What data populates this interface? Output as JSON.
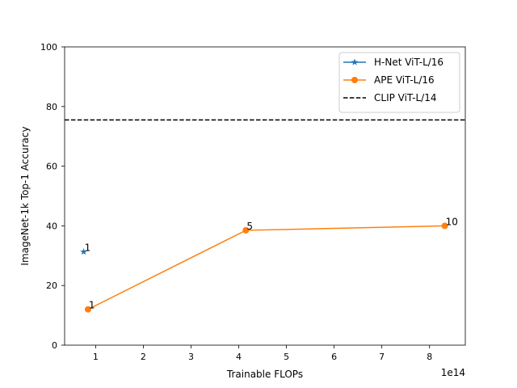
{
  "chart_data": {
    "type": "line",
    "xlabel": "Trainable FLOPs",
    "ylabel": "ImageNet-1k Top-1 Accuracy",
    "x_offset_label": "1e14",
    "xlim": [
      0.35,
      8.75
    ],
    "ylim": [
      0,
      100
    ],
    "x_ticks": [
      1,
      2,
      3,
      4,
      5,
      6,
      7,
      8
    ],
    "y_ticks": [
      0,
      20,
      40,
      60,
      80,
      100
    ],
    "grid": false,
    "legend_position": "upper-right",
    "series": [
      {
        "name": "H-Net ViT-L/16",
        "color": "#1f77b4",
        "marker": "star",
        "points": [
          {
            "x": 0.75,
            "y": 31.3,
            "label": "1"
          }
        ]
      },
      {
        "name": "APE ViT-L/16",
        "color": "#ff7f0e",
        "marker": "circle",
        "points": [
          {
            "x": 0.84,
            "y": 12.0,
            "label": "1"
          },
          {
            "x": 4.15,
            "y": 38.5,
            "label": "5"
          },
          {
            "x": 8.32,
            "y": 40.0,
            "label": "10"
          }
        ]
      }
    ],
    "reference_lines": [
      {
        "name": "CLIP ViT-L/14",
        "y": 75.5,
        "color": "#000000",
        "style": "dashed"
      }
    ]
  }
}
